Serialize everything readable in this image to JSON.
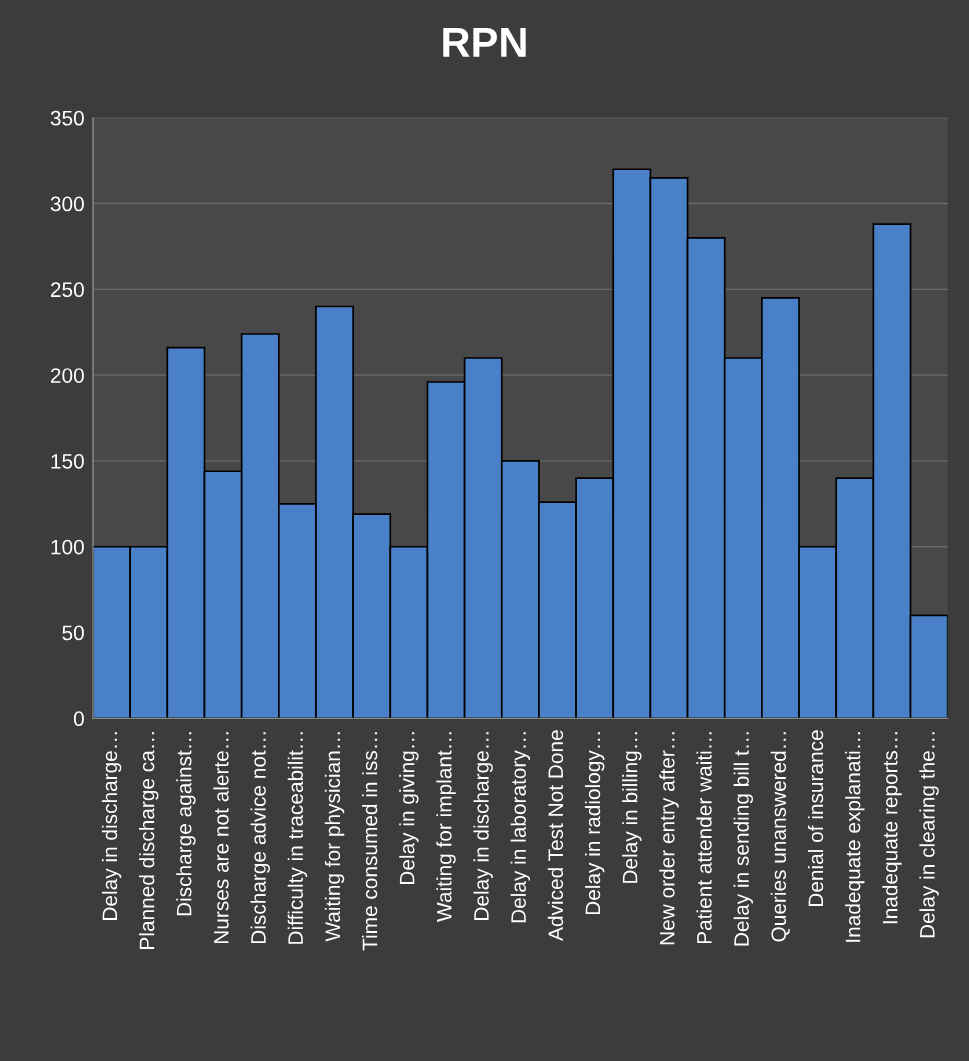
{
  "chart_data": {
    "type": "bar",
    "title": "RPN",
    "categories": [
      "Delay in discharge…",
      "Planned discharge ca…",
      "Discharge against…",
      "Nurses are not alerte…",
      "Discharge advice not…",
      "Difficulty in traceabilit…",
      "Waiting for physician…",
      "Time consumed in iss…",
      "Delay in giving…",
      "Waiting for implant…",
      "Delay in discharge…",
      "Delay in laboratory…",
      "Adviced Test Not Done",
      "Delay in radiology…",
      "Delay in billing…",
      "New order entry after…",
      "Patient attender waiti…",
      "Delay in sending bill t…",
      "Queries unanswered…",
      "Denial of insurance",
      "Inadequate explanati…",
      "Inadequate reports…",
      "Delay in clearing the…"
    ],
    "values": [
      100,
      100,
      216,
      144,
      224,
      125,
      240,
      119,
      100,
      196,
      210,
      150,
      126,
      140,
      320,
      315,
      280,
      210,
      245,
      100,
      140,
      288,
      60
    ],
    "color": "#4a80c8",
    "ylim": [
      0,
      350
    ],
    "yticks": [
      0,
      50,
      100,
      150,
      200,
      250,
      300,
      350
    ],
    "grid": "y"
  }
}
